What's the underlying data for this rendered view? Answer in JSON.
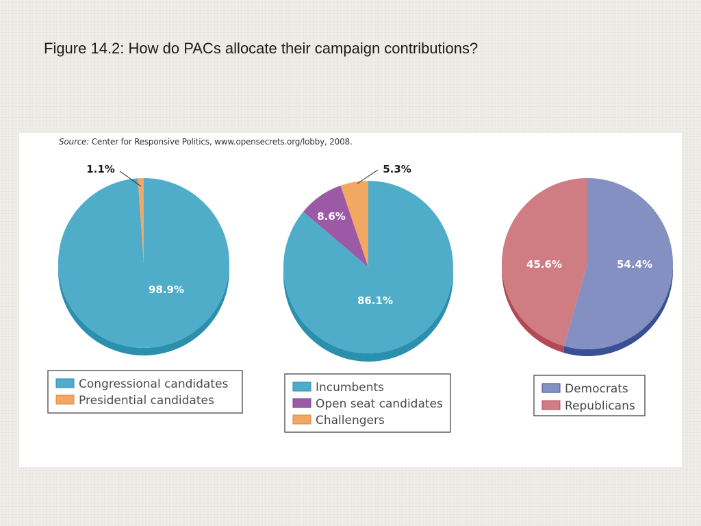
{
  "title": "Figure 14.2: How do PACs allocate their campaign contributions?",
  "source": {
    "label": "Source:",
    "text": "Center for Responsive Politics, www.opensecrets.org/lobby, 2008."
  },
  "chart_data": [
    {
      "type": "pie",
      "title": "",
      "slices": [
        {
          "label": "Congressional candidates",
          "value": 98.9,
          "value_label": "98.9%",
          "color": "#4fadc9",
          "shade": "#2b8fae"
        },
        {
          "label": "Presidential candidates",
          "value": 1.1,
          "value_label": "1.1%",
          "color": "#f2a863",
          "shade": "#d9863d"
        }
      ],
      "legend": "bottom"
    },
    {
      "type": "pie",
      "title": "",
      "slices": [
        {
          "label": "Incumbents",
          "value": 86.1,
          "value_label": "86.1%",
          "color": "#4fadc9",
          "shade": "#2b8fae"
        },
        {
          "label": "Open seat candidates",
          "value": 8.6,
          "value_label": "8.6%",
          "color": "#9c5aa6",
          "shade": "#7a3f85"
        },
        {
          "label": "Challengers",
          "value": 5.3,
          "value_label": "5.3%",
          "color": "#f2a863",
          "shade": "#d9863d"
        }
      ],
      "legend": "bottom"
    },
    {
      "type": "pie",
      "title": "",
      "slices": [
        {
          "label": "Democrats",
          "value": 54.4,
          "value_label": "54.4%",
          "color": "#8490c1",
          "shade": "#3b4f94"
        },
        {
          "label": "Republicans",
          "value": 45.6,
          "value_label": "45.6%",
          "color": "#cf7d82",
          "shade": "#b24a55"
        }
      ],
      "legend": "bottom"
    }
  ]
}
